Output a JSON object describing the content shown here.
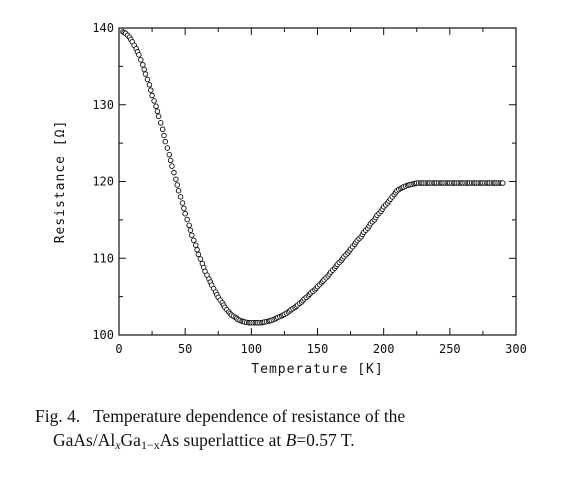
{
  "chart_data": {
    "type": "scatter",
    "xlabel": "Temperature [K]",
    "ylabel": "Resistance [Ω]",
    "xlim": [
      0,
      300
    ],
    "ylim": [
      100,
      140
    ],
    "xticks": [
      "0",
      "50",
      "100",
      "150",
      "200",
      "250",
      "300"
    ],
    "yticks": [
      "100",
      "110",
      "120",
      "130",
      "140"
    ],
    "grid": false,
    "marker": "open-circle",
    "series": [
      {
        "x": [
          3,
          5,
          8,
          10,
          13,
          15,
          18,
          20,
          23,
          25,
          28,
          30,
          33,
          35,
          38,
          40,
          43,
          45,
          48,
          50,
          53,
          55,
          58,
          60,
          63,
          65,
          68,
          70,
          73,
          75,
          78,
          80,
          83,
          85,
          88,
          90,
          93,
          95,
          98,
          100,
          103,
          105,
          108,
          110,
          113,
          115,
          118,
          120,
          123,
          125,
          128,
          130,
          133,
          135,
          138,
          140,
          143,
          145,
          148,
          150,
          153,
          155,
          158,
          160,
          163,
          165,
          168,
          170,
          173,
          175,
          178,
          180,
          183,
          185,
          188,
          190,
          193,
          195,
          198,
          200,
          203,
          205,
          208,
          210,
          213,
          215,
          218,
          220,
          223,
          225,
          228,
          230,
          233,
          235,
          238,
          240,
          243,
          245,
          248,
          250,
          253,
          255,
          258,
          260,
          263,
          265,
          268,
          270,
          273,
          275,
          278,
          280,
          283,
          285,
          288,
          290
        ],
        "y": [
          139.5,
          139.3,
          138.8,
          138.2,
          137.3,
          136.5,
          135.2,
          134.0,
          132.6,
          131.2,
          129.8,
          128.5,
          126.8,
          125.2,
          123.5,
          122.0,
          120.3,
          118.8,
          117.2,
          115.8,
          114.3,
          113.0,
          111.7,
          110.5,
          109.3,
          108.3,
          107.3,
          106.5,
          105.6,
          104.9,
          104.2,
          103.6,
          103.0,
          102.6,
          102.3,
          102.0,
          101.8,
          101.7,
          101.6,
          101.6,
          101.6,
          101.6,
          101.6,
          101.7,
          101.8,
          101.9,
          102.1,
          102.3,
          102.5,
          102.7,
          103.0,
          103.3,
          103.6,
          103.9,
          104.3,
          104.7,
          105.1,
          105.5,
          105.9,
          106.3,
          106.8,
          107.2,
          107.7,
          108.2,
          108.7,
          109.2,
          109.7,
          110.2,
          110.7,
          111.2,
          111.8,
          112.3,
          112.8,
          113.4,
          113.9,
          114.5,
          115.0,
          115.6,
          116.1,
          116.7,
          117.2,
          117.7,
          118.3,
          118.8,
          119.1,
          119.3,
          119.5,
          119.6,
          119.7,
          119.8,
          119.8,
          119.8,
          119.8,
          119.8,
          119.8,
          119.8,
          119.8,
          119.8,
          119.8,
          119.8,
          119.8,
          119.8,
          119.8,
          119.8,
          119.8,
          119.8,
          119.8,
          119.8,
          119.8,
          119.8,
          119.8,
          119.8,
          119.8,
          119.8,
          119.8,
          119.8
        ]
      }
    ]
  },
  "caption": {
    "fig_label": "Fig. 4.",
    "line1_text": "Temperature dependence of resistance of the",
    "line2_a": "GaAs/Al",
    "line2_sub1": "x",
    "line2_b": "Ga",
    "line2_sub2": "1−x",
    "line2_c": "As superlattice at ",
    "line2_var": "B",
    "line2_d": "=0.57 T."
  }
}
